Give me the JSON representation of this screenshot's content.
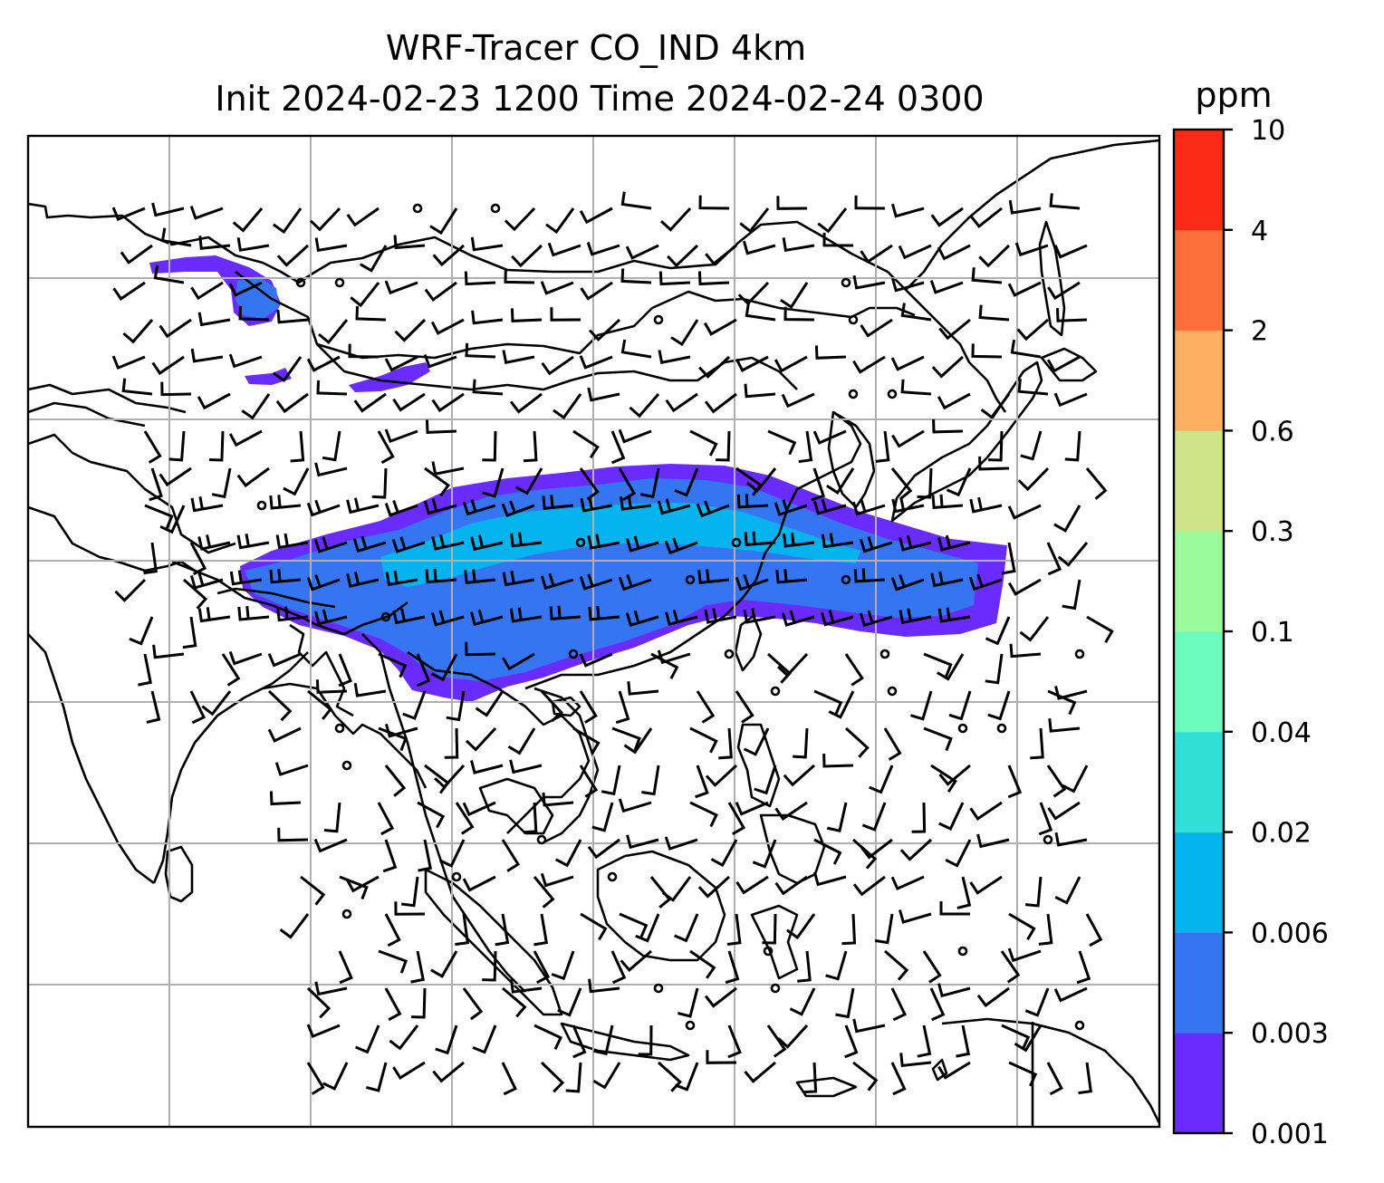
{
  "title": {
    "line1": "WRF-Tracer CO_IND 4km",
    "line2": "Init 2024-02-23 1200 Time 2024-02-24 0300"
  },
  "colorbar": {
    "unit": "ppm",
    "ticks": [
      "0.001",
      "0.003",
      "0.006",
      "0.02",
      "0.04",
      "0.1",
      "0.3",
      "0.6",
      "2",
      "4",
      "10"
    ],
    "colors": [
      "#6a2bff",
      "#3675f2",
      "#05b4ee",
      "#32dfd6",
      "#6bfbbd",
      "#9bfa9b",
      "#cfe389",
      "#fdb061",
      "#fc6f3b",
      "#fb2a16"
    ]
  },
  "chart_data": {
    "type": "heatmap",
    "variable": "CO_IND tracer",
    "units": "ppm",
    "levels": [
      0.001,
      0.003,
      0.006,
      0.02,
      0.04,
      0.1,
      0.3,
      0.6,
      2,
      4,
      10
    ],
    "plume_values": [
      {
        "band": "outer",
        "min": 0.001,
        "max": 0.003
      },
      {
        "band": "middle",
        "min": 0.003,
        "max": 0.006
      },
      {
        "band": "core",
        "min": 0.006,
        "max": 0.02
      }
    ],
    "overlays": [
      "coastlines",
      "country borders",
      "wind barbs"
    ],
    "grid": true
  }
}
